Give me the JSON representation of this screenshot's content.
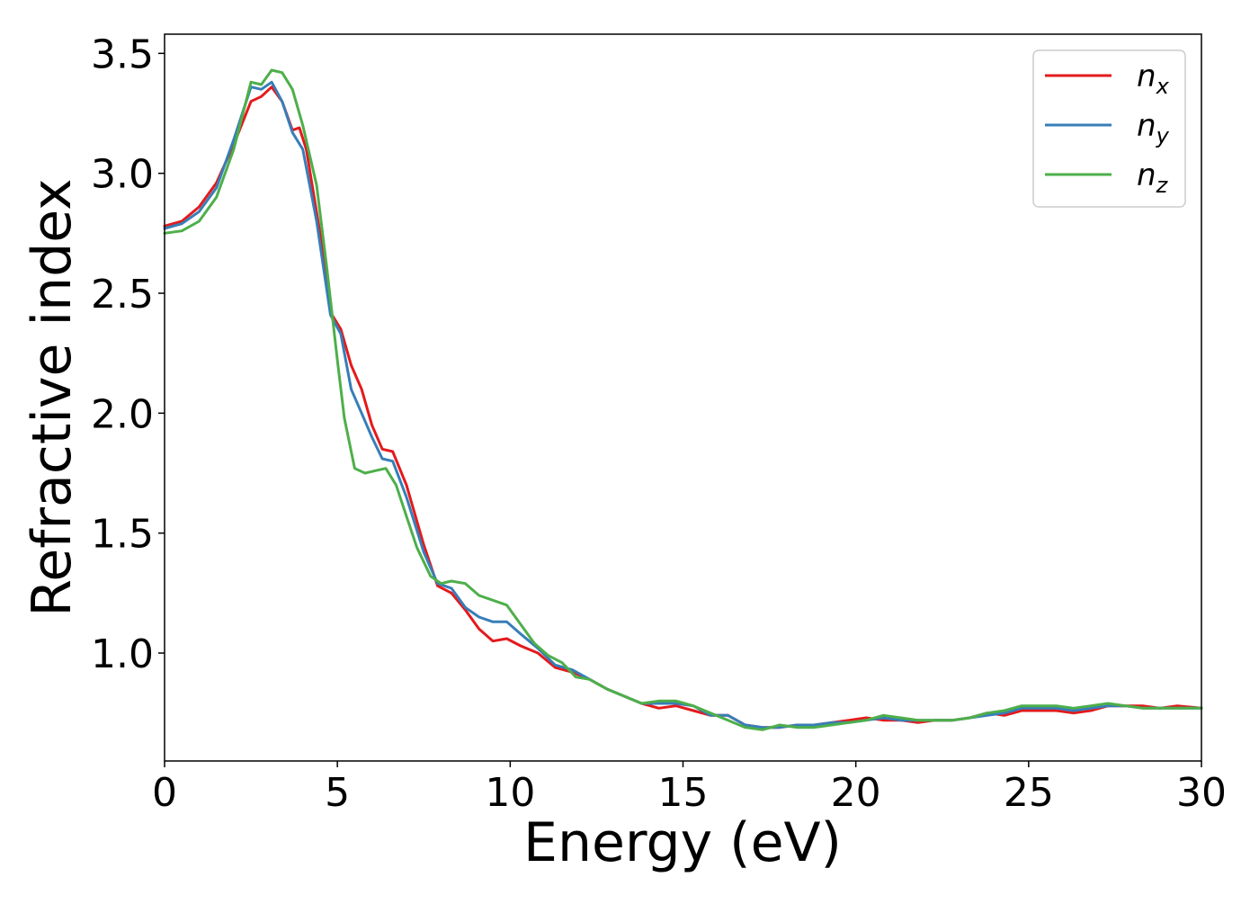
{
  "chart_data": {
    "type": "line",
    "title": "",
    "xlabel": "Energy (eV)",
    "ylabel": "Refractive index",
    "xlim": [
      0,
      30
    ],
    "ylim": [
      0.55,
      3.58
    ],
    "xticks": [
      0,
      5,
      10,
      15,
      20,
      25,
      30
    ],
    "xtick_labels": [
      "0",
      "5",
      "10",
      "15",
      "20",
      "25",
      "30"
    ],
    "yticks": [
      1.0,
      1.5,
      2.0,
      2.5,
      3.0,
      3.5
    ],
    "ytick_labels": [
      "1.0",
      "1.5",
      "2.0",
      "2.5",
      "3.0",
      "3.5"
    ],
    "grid": false,
    "legend_position": "top-right",
    "series": [
      {
        "name": "n_x",
        "legend_base": "n",
        "legend_sub": "x",
        "color": "#e41a1c",
        "points": [
          [
            0,
            2.78
          ],
          [
            0.5,
            2.8
          ],
          [
            1.0,
            2.86
          ],
          [
            1.5,
            2.96
          ],
          [
            2.0,
            3.12
          ],
          [
            2.5,
            3.3
          ],
          [
            2.8,
            3.32
          ],
          [
            3.1,
            3.36
          ],
          [
            3.4,
            3.3
          ],
          [
            3.7,
            3.18
          ],
          [
            3.9,
            3.19
          ],
          [
            4.1,
            3.1
          ],
          [
            4.5,
            2.75
          ],
          [
            4.8,
            2.42
          ],
          [
            5.1,
            2.35
          ],
          [
            5.4,
            2.2
          ],
          [
            5.7,
            2.1
          ],
          [
            6.0,
            1.95
          ],
          [
            6.3,
            1.85
          ],
          [
            6.6,
            1.84
          ],
          [
            7.0,
            1.7
          ],
          [
            7.5,
            1.45
          ],
          [
            7.9,
            1.28
          ],
          [
            8.3,
            1.25
          ],
          [
            8.7,
            1.18
          ],
          [
            9.1,
            1.1
          ],
          [
            9.5,
            1.05
          ],
          [
            9.9,
            1.06
          ],
          [
            10.3,
            1.03
          ],
          [
            10.8,
            1.0
          ],
          [
            11.3,
            0.94
          ],
          [
            11.8,
            0.92
          ],
          [
            12.3,
            0.89
          ],
          [
            12.8,
            0.85
          ],
          [
            13.3,
            0.82
          ],
          [
            13.8,
            0.79
          ],
          [
            14.3,
            0.77
          ],
          [
            14.8,
            0.78
          ],
          [
            15.3,
            0.76
          ],
          [
            15.8,
            0.74
          ],
          [
            16.3,
            0.74
          ],
          [
            16.8,
            0.7
          ],
          [
            17.3,
            0.69
          ],
          [
            17.8,
            0.69
          ],
          [
            18.3,
            0.7
          ],
          [
            18.8,
            0.7
          ],
          [
            19.3,
            0.71
          ],
          [
            19.8,
            0.72
          ],
          [
            20.3,
            0.73
          ],
          [
            20.8,
            0.72
          ],
          [
            21.3,
            0.72
          ],
          [
            21.8,
            0.71
          ],
          [
            22.3,
            0.72
          ],
          [
            22.8,
            0.72
          ],
          [
            23.3,
            0.73
          ],
          [
            23.8,
            0.75
          ],
          [
            24.3,
            0.74
          ],
          [
            24.8,
            0.76
          ],
          [
            25.3,
            0.76
          ],
          [
            25.8,
            0.76
          ],
          [
            26.3,
            0.75
          ],
          [
            26.8,
            0.76
          ],
          [
            27.3,
            0.78
          ],
          [
            27.8,
            0.78
          ],
          [
            28.3,
            0.78
          ],
          [
            28.8,
            0.77
          ],
          [
            29.3,
            0.78
          ],
          [
            30.0,
            0.77
          ]
        ]
      },
      {
        "name": "n_y",
        "legend_base": "n",
        "legend_sub": "y",
        "color": "#377eb8",
        "points": [
          [
            0,
            2.77
          ],
          [
            0.5,
            2.79
          ],
          [
            1.0,
            2.84
          ],
          [
            1.5,
            2.94
          ],
          [
            2.0,
            3.14
          ],
          [
            2.5,
            3.36
          ],
          [
            2.8,
            3.35
          ],
          [
            3.1,
            3.38
          ],
          [
            3.4,
            3.3
          ],
          [
            3.7,
            3.17
          ],
          [
            4.0,
            3.1
          ],
          [
            4.4,
            2.8
          ],
          [
            4.8,
            2.41
          ],
          [
            5.1,
            2.33
          ],
          [
            5.4,
            2.1
          ],
          [
            5.7,
            2.0
          ],
          [
            6.0,
            1.9
          ],
          [
            6.3,
            1.81
          ],
          [
            6.6,
            1.8
          ],
          [
            7.0,
            1.65
          ],
          [
            7.5,
            1.42
          ],
          [
            7.9,
            1.29
          ],
          [
            8.3,
            1.27
          ],
          [
            8.7,
            1.19
          ],
          [
            9.1,
            1.15
          ],
          [
            9.5,
            1.13
          ],
          [
            9.9,
            1.13
          ],
          [
            10.3,
            1.08
          ],
          [
            10.8,
            1.02
          ],
          [
            11.3,
            0.95
          ],
          [
            11.8,
            0.93
          ],
          [
            12.3,
            0.89
          ],
          [
            12.8,
            0.85
          ],
          [
            13.3,
            0.82
          ],
          [
            13.8,
            0.79
          ],
          [
            14.3,
            0.79
          ],
          [
            14.8,
            0.79
          ],
          [
            15.3,
            0.78
          ],
          [
            15.8,
            0.74
          ],
          [
            16.3,
            0.74
          ],
          [
            16.8,
            0.7
          ],
          [
            17.3,
            0.69
          ],
          [
            17.8,
            0.69
          ],
          [
            18.3,
            0.7
          ],
          [
            18.8,
            0.7
          ],
          [
            19.3,
            0.71
          ],
          [
            19.8,
            0.71
          ],
          [
            20.3,
            0.72
          ],
          [
            20.8,
            0.73
          ],
          [
            21.3,
            0.72
          ],
          [
            21.8,
            0.72
          ],
          [
            22.3,
            0.72
          ],
          [
            22.8,
            0.72
          ],
          [
            23.3,
            0.73
          ],
          [
            23.8,
            0.74
          ],
          [
            24.3,
            0.75
          ],
          [
            24.8,
            0.77
          ],
          [
            25.3,
            0.77
          ],
          [
            25.8,
            0.77
          ],
          [
            26.3,
            0.76
          ],
          [
            26.8,
            0.77
          ],
          [
            27.3,
            0.78
          ],
          [
            27.8,
            0.78
          ],
          [
            28.3,
            0.77
          ],
          [
            28.8,
            0.77
          ],
          [
            29.3,
            0.77
          ],
          [
            30.0,
            0.77
          ]
        ]
      },
      {
        "name": "n_z",
        "legend_base": "n",
        "legend_sub": "z",
        "color": "#4daf4a",
        "points": [
          [
            0,
            2.75
          ],
          [
            0.5,
            2.76
          ],
          [
            1.0,
            2.8
          ],
          [
            1.5,
            2.9
          ],
          [
            2.0,
            3.1
          ],
          [
            2.5,
            3.38
          ],
          [
            2.8,
            3.37
          ],
          [
            3.1,
            3.43
          ],
          [
            3.4,
            3.42
          ],
          [
            3.7,
            3.35
          ],
          [
            4.0,
            3.2
          ],
          [
            4.4,
            2.95
          ],
          [
            4.7,
            2.6
          ],
          [
            5.0,
            2.22
          ],
          [
            5.2,
            1.98
          ],
          [
            5.5,
            1.77
          ],
          [
            5.8,
            1.75
          ],
          [
            6.1,
            1.76
          ],
          [
            6.4,
            1.77
          ],
          [
            6.7,
            1.7
          ],
          [
            7.0,
            1.57
          ],
          [
            7.3,
            1.44
          ],
          [
            7.7,
            1.32
          ],
          [
            8.0,
            1.29
          ],
          [
            8.3,
            1.3
          ],
          [
            8.7,
            1.29
          ],
          [
            9.1,
            1.24
          ],
          [
            9.5,
            1.22
          ],
          [
            9.9,
            1.2
          ],
          [
            10.3,
            1.12
          ],
          [
            10.7,
            1.04
          ],
          [
            11.1,
            0.99
          ],
          [
            11.5,
            0.96
          ],
          [
            11.9,
            0.9
          ],
          [
            12.3,
            0.89
          ],
          [
            12.8,
            0.85
          ],
          [
            13.3,
            0.82
          ],
          [
            13.8,
            0.79
          ],
          [
            14.3,
            0.8
          ],
          [
            14.8,
            0.8
          ],
          [
            15.3,
            0.78
          ],
          [
            15.8,
            0.75
          ],
          [
            16.3,
            0.72
          ],
          [
            16.8,
            0.69
          ],
          [
            17.3,
            0.68
          ],
          [
            17.8,
            0.7
          ],
          [
            18.3,
            0.69
          ],
          [
            18.8,
            0.69
          ],
          [
            19.3,
            0.7
          ],
          [
            19.8,
            0.71
          ],
          [
            20.3,
            0.72
          ],
          [
            20.8,
            0.74
          ],
          [
            21.3,
            0.73
          ],
          [
            21.8,
            0.72
          ],
          [
            22.3,
            0.72
          ],
          [
            22.8,
            0.72
          ],
          [
            23.3,
            0.73
          ],
          [
            23.8,
            0.75
          ],
          [
            24.3,
            0.76
          ],
          [
            24.8,
            0.78
          ],
          [
            25.3,
            0.78
          ],
          [
            25.8,
            0.78
          ],
          [
            26.3,
            0.77
          ],
          [
            26.8,
            0.78
          ],
          [
            27.3,
            0.79
          ],
          [
            27.8,
            0.78
          ],
          [
            28.3,
            0.77
          ],
          [
            28.8,
            0.77
          ],
          [
            29.3,
            0.77
          ],
          [
            30.0,
            0.77
          ]
        ]
      }
    ]
  }
}
